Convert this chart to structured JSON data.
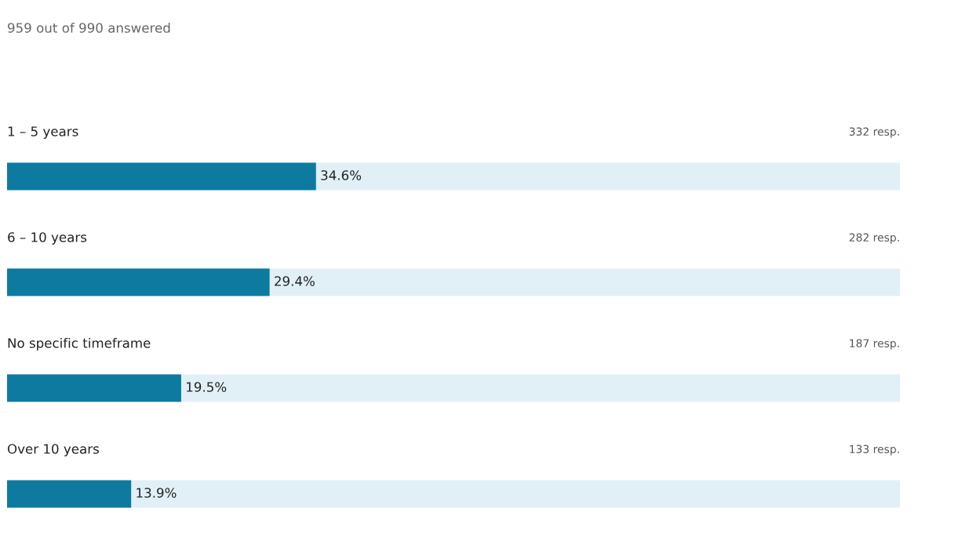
{
  "chart_data": {
    "type": "bar",
    "orientation": "horizontal",
    "title": "959 out of 990 answered",
    "categories": [
      "1 – 5 years",
      "6 – 10 years",
      "No specific timeframe",
      "Over 10 years"
    ],
    "series": [
      {
        "color": "#0e7aa0",
        "values": [
          34.6,
          29.4,
          19.5,
          13.9
        ],
        "value_labels": [
          "34.6%",
          "29.4%",
          "19.5%",
          "13.9%"
        ]
      }
    ],
    "annotations": [
      "332 resp.",
      "282 resp.",
      "187 resp.",
      "133 resp."
    ],
    "xlim": [
      0,
      100
    ]
  }
}
